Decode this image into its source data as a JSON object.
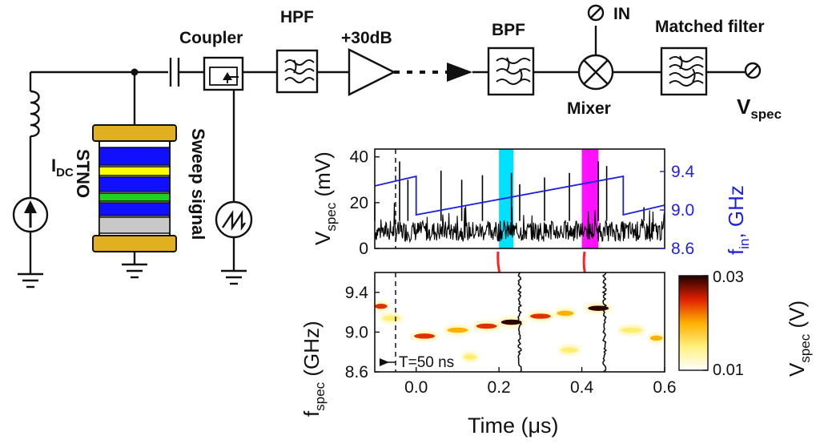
{
  "circuit": {
    "labels": {
      "coupler": "Coupler",
      "hpf": "HPF",
      "gain": "+30dB",
      "bpf": "BPF",
      "in": "IN",
      "mixer": "Mixer",
      "matched_filter": "Matched filter",
      "vspec": "V",
      "vspec_sub": "spec",
      "idc": "I",
      "idc_sub": "DC",
      "stno": "STNO",
      "sweep": "Sweep signal"
    },
    "colors": {
      "electrode": "#e0b020",
      "blue_layer": "#1010ff",
      "yellow_layer": "#ffff00",
      "green_layer": "#20d020",
      "gray_layer": "#c8c8c8",
      "axis_blue": "#1f1fe0"
    }
  },
  "chart_data": [
    {
      "type": "line",
      "name": "time-trace",
      "title": "",
      "ylabel": "V",
      "ylabel_sub": "spec",
      "ylabel_unit": " (mV)",
      "ylim": [
        0,
        42
      ],
      "yticks": [
        "0",
        "20",
        "40"
      ],
      "y2label": "f",
      "y2label_sub": "in",
      "y2label_unit": ", GHz",
      "y2lim": [
        8.6,
        9.6
      ],
      "y2ticks": [
        "8.6",
        "9.0",
        "9.4"
      ],
      "xlim": [
        -0.1,
        0.6
      ],
      "series": [
        {
          "name": "V_spec",
          "color": "#000000",
          "x": [
            -0.1,
            -0.04,
            -0.02,
            0.06,
            0.11,
            0.16,
            0.23,
            0.25,
            0.31,
            0.37,
            0.44,
            0.46,
            0.55
          ],
          "peaks": [
            20,
            38,
            30,
            34,
            30,
            32,
            33,
            28,
            31,
            33,
            38,
            36,
            18
          ],
          "baseline_range": [
            3,
            12
          ]
        },
        {
          "name": "f_in sweep",
          "color": "#1f1fe0",
          "x": [
            -0.1,
            0.0,
            0.0,
            0.5,
            0.5,
            0.6
          ],
          "y": [
            9.25,
            9.35,
            8.95,
            9.35,
            8.95,
            9.05
          ]
        }
      ],
      "highlights": [
        {
          "x": [
            0.2,
            0.235
          ],
          "color": "#00e0ff"
        },
        {
          "x": [
            0.4,
            0.44
          ],
          "color": "#ff10ff"
        }
      ],
      "annotations": []
    },
    {
      "type": "heatmap",
      "name": "spectrogram",
      "xlabel": "Time (μs)",
      "xticks": [
        "0.0",
        "0.2",
        "0.4",
        "0.6"
      ],
      "xlim": [
        -0.1,
        0.6
      ],
      "ylabel": "f",
      "ylabel_sub": "spec",
      "ylabel_unit": " (GHz)",
      "ylim": [
        8.6,
        9.6
      ],
      "yticks": [
        "8.6",
        "9.0",
        "9.4"
      ],
      "colorbar": {
        "label": "V",
        "label_sub": "spec",
        "label_unit": " (V)",
        "range": [
          0.01,
          0.03
        ],
        "ticks": [
          "0.01",
          "0.03"
        ]
      },
      "blobs": [
        {
          "t": -0.085,
          "f": 9.26,
          "w": 0.03,
          "v": 0.02
        },
        {
          "t": -0.06,
          "f": 9.14,
          "w": 0.04,
          "v": 0.012
        },
        {
          "t": 0.02,
          "f": 8.96,
          "w": 0.05,
          "v": 0.024
        },
        {
          "t": 0.1,
          "f": 9.02,
          "w": 0.05,
          "v": 0.018
        },
        {
          "t": 0.17,
          "f": 9.06,
          "w": 0.05,
          "v": 0.02
        },
        {
          "t": 0.23,
          "f": 9.1,
          "w": 0.05,
          "v": 0.026
        },
        {
          "t": 0.3,
          "f": 9.16,
          "w": 0.05,
          "v": 0.02
        },
        {
          "t": 0.36,
          "f": 9.19,
          "w": 0.04,
          "v": 0.016
        },
        {
          "t": 0.44,
          "f": 9.24,
          "w": 0.05,
          "v": 0.028
        },
        {
          "t": 0.52,
          "f": 9.02,
          "w": 0.05,
          "v": 0.014
        },
        {
          "t": 0.58,
          "f": 8.94,
          "w": 0.03,
          "v": 0.015
        },
        {
          "t": 0.13,
          "f": 8.75,
          "w": 0.03,
          "v": 0.011
        },
        {
          "t": 0.37,
          "f": 8.82,
          "w": 0.04,
          "v": 0.011
        }
      ],
      "annotations": [
        {
          "text": "T=50 ns",
          "at": [
            -0.05,
            8.72
          ]
        }
      ]
    }
  ]
}
